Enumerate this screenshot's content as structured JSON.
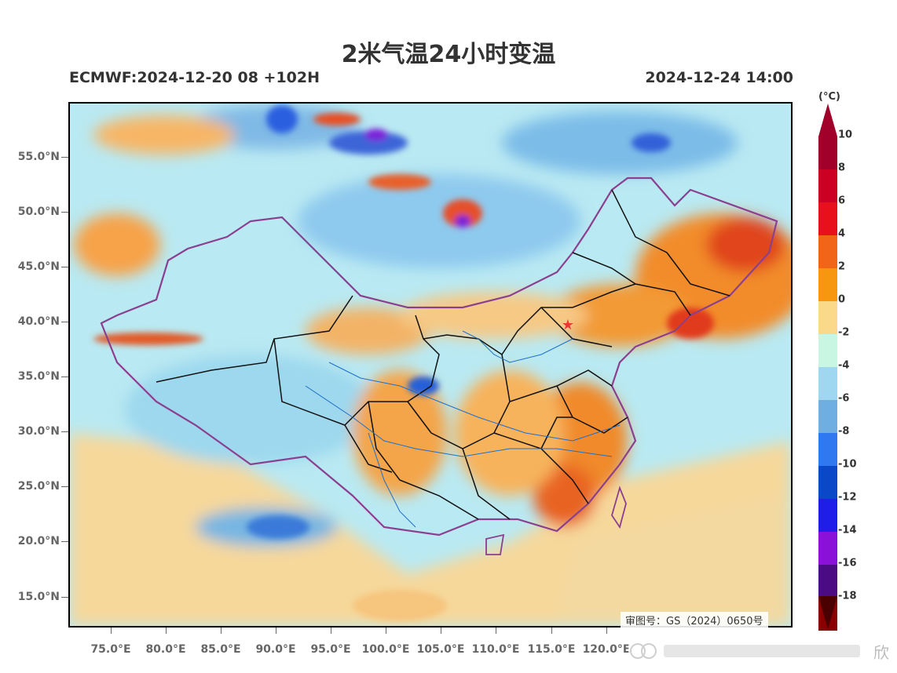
{
  "title": "2米气温24小时变温",
  "model_run": "ECMWF:2024-12-20 08 +102H",
  "valid_time": "2024-12-24 14:00",
  "approval_number": "审图号：GS（2024）0650号",
  "watermark_text": "欣",
  "lat_axis": [
    "55.0°N",
    "50.0°N",
    "45.0°N",
    "40.0°N",
    "35.0°N",
    "30.0°N",
    "25.0°N",
    "20.0°N",
    "15.0°N"
  ],
  "lon_axis": [
    "75.0°E",
    "80.0°E",
    "85.0°E",
    "90.0°E",
    "95.0°E",
    "100.0°E",
    "105.0°E",
    "110.0°E",
    "115.0°E",
    "120.0°E"
  ],
  "legend": {
    "unit": "(°C)",
    "labels": [
      "10",
      "8",
      "6",
      "4",
      "2",
      "0",
      "-2",
      "-4",
      "-6",
      "-8",
      "-10",
      "-12",
      "-14",
      "-16",
      "-18"
    ],
    "colors": [
      "#a0002a",
      "#cc0022",
      "#e8101a",
      "#f06518",
      "#f7960f",
      "#fbd98a",
      "#c9f5e3",
      "#9fd7f0",
      "#6eaee0",
      "#2f78f0",
      "#0a48c8",
      "#1e1ee8",
      "#8a12d8",
      "#4b0b82",
      "#8a0000"
    ],
    "top_arrow_color": "#a0002a",
    "bottom_arrow_color": "#4a0000"
  },
  "capital_marker_color": "#e53935",
  "border_color_national": "#8b3f8f",
  "border_color_provincial": "#111111"
}
